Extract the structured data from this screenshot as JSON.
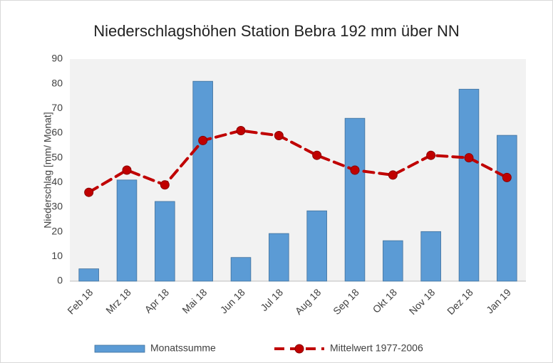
{
  "chart_data": {
    "type": "bar",
    "title": "Niederschlagshöhen Station Bebra 192 mm über NN",
    "y_label": "Niederschlag [mm/ Monat]",
    "categories": [
      "Feb 18",
      "Mrz 18",
      "Apr 18",
      "Mai 18",
      "Jun 18",
      "Jul 18",
      "Aug 18",
      "Sep 18",
      "Okt 18",
      "Nov 18",
      "Dez 18",
      "Jan 19"
    ],
    "series": [
      {
        "name": "Monatssumme",
        "type": "bar",
        "color": "#5b9bd5",
        "values": [
          5,
          41,
          32.3,
          81,
          9.6,
          19.3,
          28.5,
          66,
          16.4,
          20.1,
          77.8,
          59.1
        ]
      },
      {
        "name": "Mittelwert 1977-2006",
        "type": "line",
        "color": "#c00000",
        "values": [
          36,
          45,
          39,
          57,
          61,
          59,
          51,
          45,
          43,
          51,
          50,
          42
        ]
      }
    ],
    "ylim": [
      0,
      90
    ],
    "yticks": [
      0,
      10,
      20,
      30,
      40,
      50,
      60,
      70,
      80,
      90
    ],
    "grid": false
  }
}
